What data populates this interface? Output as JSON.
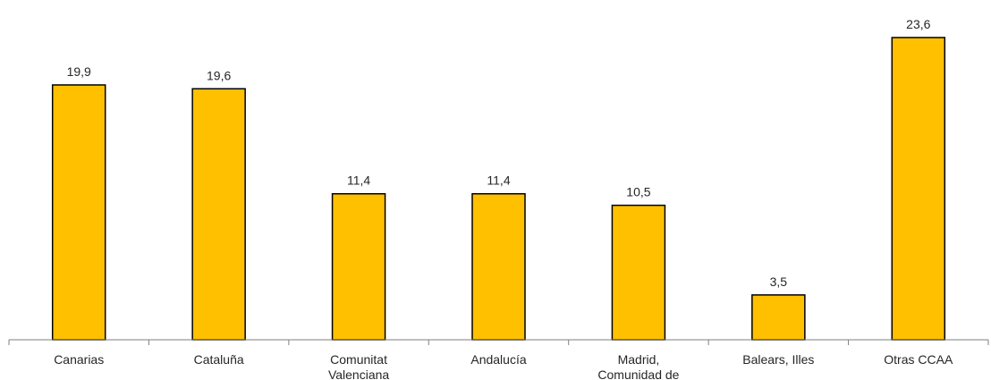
{
  "chart_data": {
    "type": "bar",
    "categories": [
      [
        "Canarias"
      ],
      [
        "Cataluña"
      ],
      [
        "Comunitat",
        "Valenciana"
      ],
      [
        "Andalucía"
      ],
      [
        "Madrid,",
        "Comunidad de"
      ],
      [
        "Balears, Illes"
      ],
      [
        "Otras CCAA"
      ]
    ],
    "values": [
      19.9,
      19.6,
      11.4,
      11.4,
      10.5,
      3.5,
      23.6
    ],
    "value_labels": [
      "19,9",
      "19,6",
      "11,4",
      "11,4",
      "10,5",
      "3,5",
      "23,6"
    ],
    "ylim": [
      0,
      25
    ],
    "grid": false,
    "colors": {
      "bar": "#FFC000",
      "bar_outline": "#000000",
      "axis": "#7f7f7f",
      "text": "#262626"
    }
  }
}
